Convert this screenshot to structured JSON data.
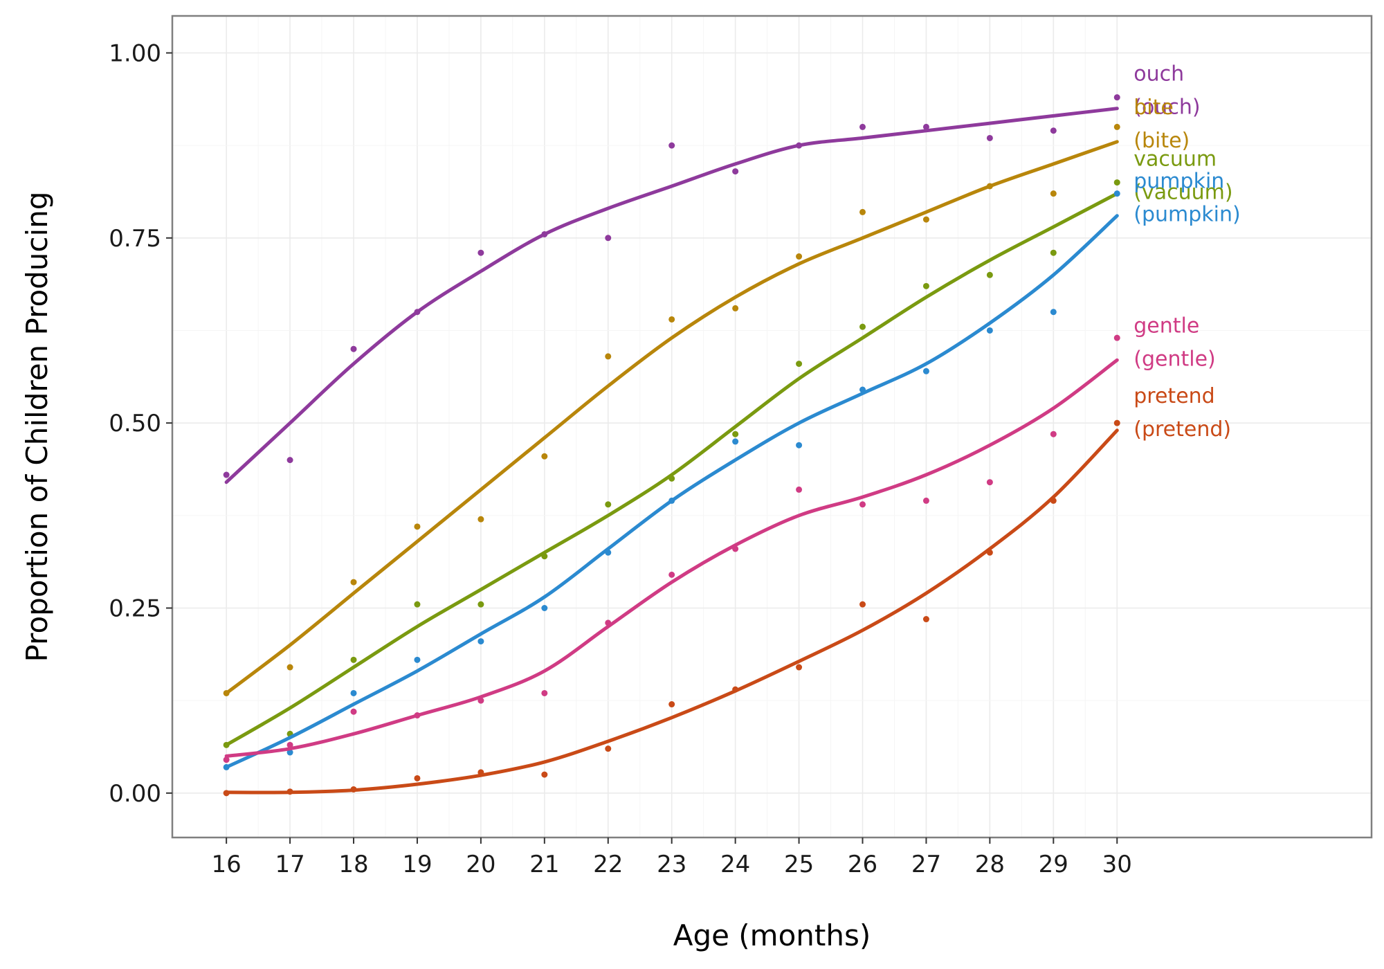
{
  "chart_data": {
    "type": "line",
    "title": "",
    "xlabel": "Age (months)",
    "ylabel": "Proportion of Children Producing",
    "xlim": [
      15.15,
      34.0
    ],
    "ylim": [
      -0.06,
      1.05
    ],
    "x_ticks": [
      16,
      17,
      18,
      19,
      20,
      21,
      22,
      23,
      24,
      25,
      26,
      27,
      28,
      29,
      30
    ],
    "y_ticks": [
      0.0,
      0.25,
      0.5,
      0.75,
      1.0
    ],
    "y_tick_labels": [
      "0.00",
      "0.25",
      "0.50",
      "0.75",
      "1.00"
    ],
    "grid": true,
    "legend": "none (direct labels at right end of each series)",
    "x": [
      16,
      17,
      18,
      19,
      20,
      21,
      22,
      23,
      24,
      25,
      26,
      27,
      28,
      29,
      30
    ],
    "series": [
      {
        "name": "ouch",
        "label_line1": "ouch",
        "label_line2": "(ouch)",
        "color": "#8e3a9c",
        "points": [
          0.43,
          0.45,
          0.6,
          0.65,
          0.73,
          0.755,
          0.75,
          0.875,
          0.84,
          0.875,
          0.9,
          0.9,
          0.885,
          0.895,
          0.94
        ],
        "smooth": [
          0.42,
          0.5,
          0.58,
          0.65,
          0.705,
          0.755,
          0.79,
          0.82,
          0.85,
          0.875,
          0.885,
          0.895,
          0.905,
          0.915,
          0.925
        ]
      },
      {
        "name": "bite",
        "label_line1": "bite",
        "label_line2": "(bite)",
        "color": "#b8860b",
        "points": [
          0.135,
          0.17,
          0.285,
          0.36,
          0.37,
          0.455,
          0.59,
          0.64,
          0.655,
          0.725,
          0.785,
          0.775,
          0.82,
          0.81,
          0.9
        ],
        "smooth": [
          0.135,
          0.2,
          0.27,
          0.34,
          0.41,
          0.48,
          0.55,
          0.615,
          0.67,
          0.715,
          0.75,
          0.785,
          0.82,
          0.85,
          0.88
        ]
      },
      {
        "name": "vacuum",
        "label_line1": "vacuum",
        "label_line2": "(vacuum)",
        "color": "#7a9a10",
        "points": [
          0.065,
          0.08,
          0.18,
          0.255,
          0.255,
          0.32,
          0.39,
          0.425,
          0.485,
          0.58,
          0.63,
          0.685,
          0.7,
          0.73,
          0.825
        ],
        "smooth": [
          0.065,
          0.115,
          0.17,
          0.225,
          0.275,
          0.325,
          0.375,
          0.43,
          0.495,
          0.56,
          0.615,
          0.67,
          0.72,
          0.765,
          0.81
        ]
      },
      {
        "name": "pumpkin",
        "label_line1": "pumpkin",
        "label_line2": "(pumpkin)",
        "color": "#2b8ad0",
        "points": [
          0.035,
          0.055,
          0.135,
          0.18,
          0.205,
          0.25,
          0.325,
          0.395,
          0.475,
          0.47,
          0.545,
          0.57,
          0.625,
          0.65,
          0.81
        ],
        "smooth": [
          0.035,
          0.075,
          0.12,
          0.165,
          0.215,
          0.265,
          0.33,
          0.395,
          0.45,
          0.5,
          0.54,
          0.58,
          0.635,
          0.7,
          0.78
        ]
      },
      {
        "name": "gentle",
        "label_line1": "gentle",
        "label_line2": "(gentle)",
        "color": "#d03b84",
        "points": [
          0.045,
          0.065,
          0.11,
          0.105,
          0.125,
          0.135,
          0.23,
          0.295,
          0.33,
          0.41,
          0.39,
          0.395,
          0.42,
          0.485,
          0.615
        ],
        "smooth": [
          0.05,
          0.06,
          0.08,
          0.105,
          0.13,
          0.165,
          0.225,
          0.285,
          0.335,
          0.375,
          0.4,
          0.43,
          0.47,
          0.52,
          0.585
        ]
      },
      {
        "name": "pretend",
        "label_line1": "pretend",
        "label_line2": "(pretend)",
        "color": "#c94a17",
        "points": [
          0.0,
          0.002,
          0.005,
          0.02,
          0.028,
          0.025,
          0.06,
          0.12,
          0.14,
          0.17,
          0.255,
          0.235,
          0.325,
          0.395,
          0.5
        ],
        "smooth": [
          0.001,
          0.001,
          0.004,
          0.012,
          0.024,
          0.042,
          0.07,
          0.102,
          0.138,
          0.178,
          0.22,
          0.27,
          0.33,
          0.4,
          0.49
        ]
      }
    ]
  }
}
